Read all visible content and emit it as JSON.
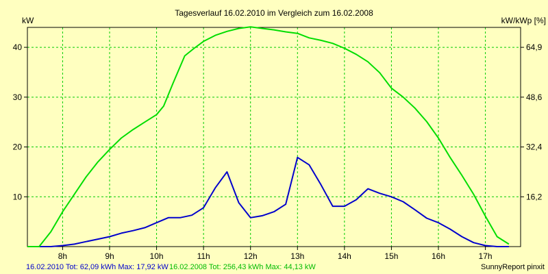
{
  "chart_data": {
    "type": "line",
    "title": "Tagesverlauf 16.02.2010 im Vergleich zum 16.02.2008",
    "ylabel_left": "kW",
    "ylabel_right": "kW/kWp [%]",
    "x_ticks": [
      "8h",
      "9h",
      "10h",
      "11h",
      "12h",
      "13h",
      "14h",
      "15h",
      "16h",
      "17h"
    ],
    "xlim": [
      7.25,
      17.75
    ],
    "ylim": [
      0,
      44
    ],
    "y_ticks_left": [
      10,
      20,
      30,
      40
    ],
    "y_ticks_right": [
      "16,2",
      "32,4",
      "48,6",
      "64,9"
    ],
    "grid": true,
    "legend_placement": "bottom-left",
    "series": [
      {
        "name": "16.02.2010",
        "color": "#0000cc",
        "x": [
          7.5,
          7.75,
          8.0,
          8.25,
          8.5,
          8.75,
          9.0,
          9.25,
          9.5,
          9.75,
          10.0,
          10.25,
          10.5,
          10.75,
          11.0,
          11.25,
          11.5,
          11.75,
          12.0,
          12.25,
          12.5,
          12.75,
          13.0,
          13.25,
          13.5,
          13.75,
          14.0,
          14.25,
          14.5,
          14.75,
          15.0,
          15.25,
          15.5,
          15.75,
          16.0,
          16.25,
          16.5,
          16.75,
          17.0,
          17.25,
          17.5
        ],
        "values": [
          0,
          0,
          0.2,
          0.5,
          1.0,
          1.5,
          2.0,
          2.7,
          3.2,
          3.8,
          4.8,
          5.8,
          5.8,
          6.3,
          7.8,
          11.8,
          15.0,
          8.8,
          5.8,
          6.2,
          7.0,
          8.5,
          17.9,
          16.4,
          12.4,
          8.1,
          8.1,
          9.4,
          11.6,
          10.7,
          10.0,
          9.0,
          7.4,
          5.7,
          4.8,
          3.5,
          2.0,
          0.8,
          0.2,
          0,
          0
        ]
      },
      {
        "name": "16.02.2008",
        "color": "#00dd00",
        "x": [
          7.25,
          7.5,
          7.75,
          8.0,
          8.25,
          8.5,
          8.75,
          9.0,
          9.25,
          9.5,
          9.75,
          10.0,
          10.15,
          10.35,
          10.6,
          10.8,
          11.0,
          11.25,
          11.5,
          11.75,
          12.0,
          12.25,
          12.5,
          12.75,
          13.0,
          13.25,
          13.5,
          13.75,
          14.0,
          14.25,
          14.5,
          14.75,
          15.0,
          15.25,
          15.5,
          15.75,
          16.0,
          16.25,
          16.5,
          16.75,
          17.0,
          17.25,
          17.5
        ],
        "values": [
          0,
          0,
          3.0,
          7.0,
          10.5,
          14.0,
          17.0,
          19.5,
          21.8,
          23.5,
          25.0,
          26.5,
          28.2,
          32.8,
          38.3,
          39.8,
          41.2,
          42.4,
          43.2,
          43.8,
          44.1,
          43.8,
          43.5,
          43.1,
          42.8,
          41.9,
          41.4,
          40.8,
          39.8,
          38.6,
          37.1,
          34.9,
          31.8,
          30.0,
          27.8,
          25.1,
          21.8,
          17.9,
          14.3,
          10.5,
          6.1,
          2.0,
          0.5
        ]
      }
    ],
    "footer": {
      "s1_text": "16.02.2010 Tot: 62,09 kWh Max: 17,92 kW",
      "s2_text": "16.02.2008 Tot: 256,43 kWh Max: 44,13 kW",
      "credit": "SunnyReport pinxit"
    }
  }
}
